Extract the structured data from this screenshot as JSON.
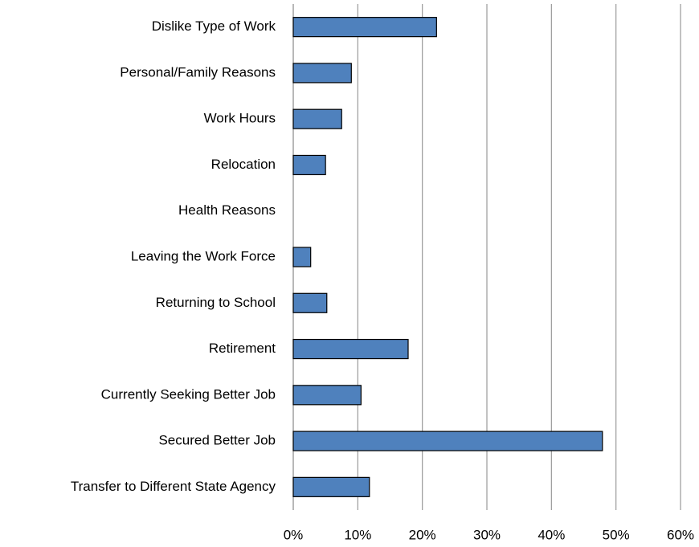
{
  "chart_data": {
    "type": "hbar",
    "categories": [
      "Dislike Type of Work",
      "Personal/Family Reasons",
      "Work Hours",
      "Relocation",
      "Health Reasons",
      "Leaving the Work Force",
      "Returning to School",
      "Retirement",
      "Currently Seeking Better Job",
      "Secured Better Job",
      "Transfer to Different State Agency"
    ],
    "values": [
      22.2,
      9.0,
      7.5,
      5.0,
      0,
      2.7,
      5.2,
      17.8,
      10.5,
      47.9,
      11.8
    ],
    "color": "#4f81bd",
    "xlim": [
      0,
      60
    ],
    "xticks": [
      {
        "value": 0,
        "label": "0%"
      },
      {
        "value": 10,
        "label": "10%"
      },
      {
        "value": 20,
        "label": "20%"
      },
      {
        "value": 30,
        "label": "30%"
      },
      {
        "value": 40,
        "label": "40%"
      },
      {
        "value": 50,
        "label": "50%"
      },
      {
        "value": 60,
        "label": "60%"
      }
    ],
    "grid": true
  }
}
